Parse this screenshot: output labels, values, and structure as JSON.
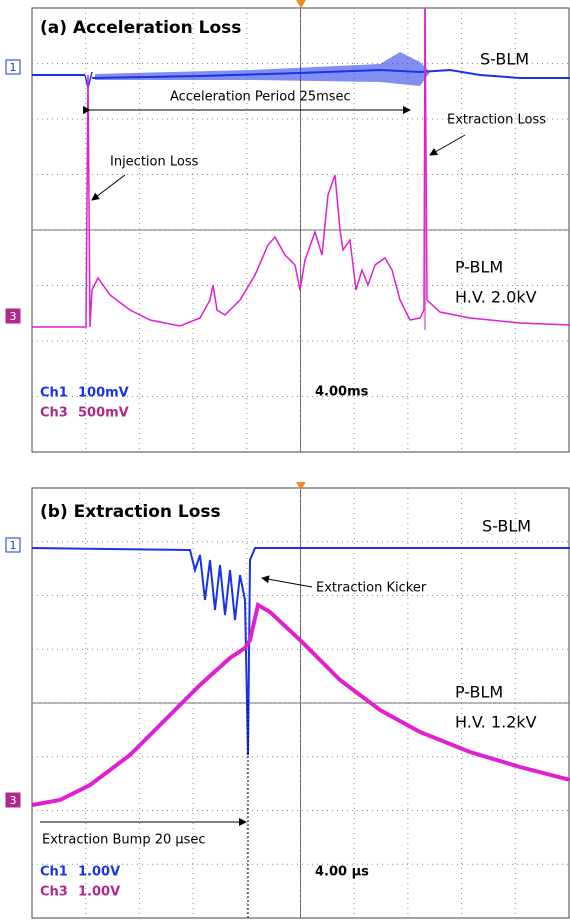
{
  "panels": [
    {
      "title": "(a) Acceleration Loss",
      "top_label": "S-BLM",
      "period": "Acceleration Period 25msec",
      "extraction": "Extraction Loss",
      "injection": "Injection Loss",
      "bottom_label": "P-BLM",
      "hv": "H.V. 2.0kV",
      "timebase": "4.00ms",
      "ch1": "Ch1",
      "ch1_scale": "100mV",
      "ch3": "Ch3",
      "ch3_scale": "500mV",
      "marker1": "1",
      "marker3": "3"
    },
    {
      "title": "(b) Extraction Loss",
      "top_label": "S-BLM",
      "kicker": "Extraction Kicker",
      "bottom_label": "P-BLM",
      "hv": "H.V. 1.2kV",
      "bump": "Extraction Bump 20 µsec",
      "timebase": "4.00 µs",
      "ch1": "Ch1",
      "ch1_scale": "1.00V",
      "ch3": "Ch3",
      "ch3_scale": "1.00V",
      "marker1": "1",
      "marker3": "3"
    }
  ]
}
